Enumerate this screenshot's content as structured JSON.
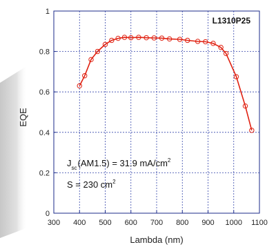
{
  "chart_data": {
    "type": "line",
    "title": "L1310P25",
    "xlabel": "Lambda (nm)",
    "ylabel": "EQE",
    "xlim": [
      300,
      1100
    ],
    "ylim": [
      0,
      1
    ],
    "x_ticks": [
      "300",
      "400",
      "500",
      "600",
      "700",
      "800",
      "900",
      "1000",
      "1100"
    ],
    "y_ticks": [
      "0",
      "0.2",
      "0.4",
      "0.6",
      "0.8",
      "1"
    ],
    "grid": true,
    "series": [
      {
        "color": "#e02010",
        "marker": "open-circle",
        "x": [
          400,
          420,
          445,
          470,
          500,
          525,
          550,
          575,
          600,
          630,
          660,
          690,
          720,
          750,
          790,
          820,
          860,
          890,
          920,
          950,
          970,
          1010,
          1045,
          1070
        ],
        "y": [
          0.63,
          0.68,
          0.76,
          0.8,
          0.835,
          0.855,
          0.865,
          0.87,
          0.868,
          0.87,
          0.868,
          0.867,
          0.866,
          0.862,
          0.86,
          0.855,
          0.85,
          0.848,
          0.84,
          0.82,
          0.79,
          0.675,
          0.53,
          0.41
        ]
      }
    ],
    "annotations": {
      "jsc_main": "J",
      "jsc_sub": "sc",
      "jsc_text": "(AM1.5) = 31.9 mA/cm",
      "jsc_sup": "2",
      "area_text": "S = 230 cm",
      "area_sup": "2"
    }
  }
}
